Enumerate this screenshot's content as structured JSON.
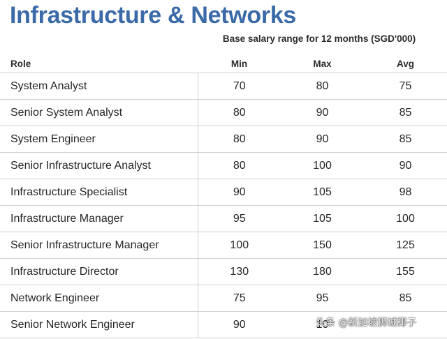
{
  "title": "Infrastructure & Networks",
  "subtitle": "Base salary range for 12 months (SGD'000)",
  "columns": {
    "role": "Role",
    "min": "Min",
    "max": "Max",
    "avg": "Avg"
  },
  "rows": [
    {
      "role": "System Analyst",
      "min": "70",
      "max": "80",
      "avg": "75"
    },
    {
      "role": "Senior System Analyst",
      "min": "80",
      "max": "90",
      "avg": "85"
    },
    {
      "role": "System Engineer",
      "min": "80",
      "max": "90",
      "avg": "85"
    },
    {
      "role": "Senior Infrastructure Analyst",
      "min": "80",
      "max": "100",
      "avg": "90"
    },
    {
      "role": "Infrastructure Specialist",
      "min": "90",
      "max": "105",
      "avg": "98"
    },
    {
      "role": "Infrastructure Manager",
      "min": "95",
      "max": "105",
      "avg": "100"
    },
    {
      "role": "Senior Infrastructure Manager",
      "min": "100",
      "max": "150",
      "avg": "125"
    },
    {
      "role": "Infrastructure Director",
      "min": "130",
      "max": "180",
      "avg": "155"
    },
    {
      "role": "Network Engineer",
      "min": "75",
      "max": "95",
      "avg": "85"
    },
    {
      "role": "Senior Network Engineer",
      "min": "90",
      "max": "10",
      "avg": ""
    }
  ],
  "watermark": "头条 @新加坡狮城椰子",
  "colors": {
    "title": "#3a6aa8",
    "rule": "#d0d0d0"
  }
}
